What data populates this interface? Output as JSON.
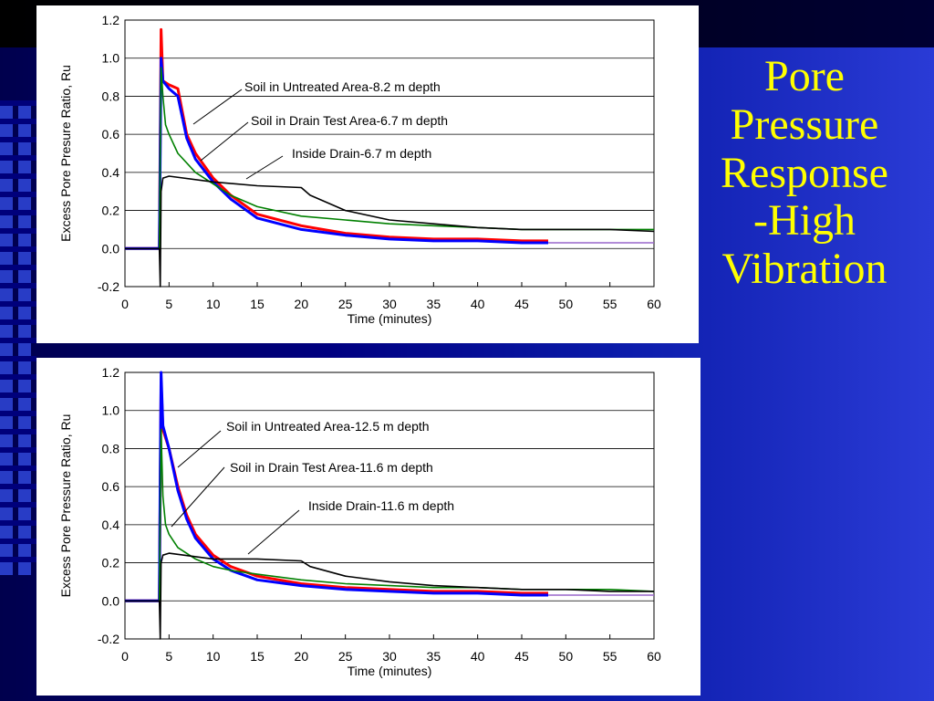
{
  "slide": {
    "title_lines": [
      "Pore",
      "Pressure",
      "Response",
      "-High",
      "Vibration"
    ]
  },
  "colors": {
    "untreated": "#ff0000",
    "drain_test": "#0000ff",
    "green": "#008000",
    "inside_drain": "#000000",
    "purple": "#9966cc",
    "title": "#ffff00"
  },
  "chart_data": [
    {
      "type": "line",
      "ylabel": "Excess Pore Presure Ratio, Ru",
      "xlabel": "Time (minutes)",
      "xlim": [
        0,
        60
      ],
      "ylim": [
        -0.2,
        1.2
      ],
      "xticks": [
        "0",
        "5",
        "10",
        "15",
        "20",
        "25",
        "30",
        "35",
        "40",
        "45",
        "50",
        "55",
        "60"
      ],
      "yticks": [
        "1.2",
        "1.0",
        "0.8",
        "0.6",
        "0.4",
        "0.2",
        "0.0",
        "-0.2"
      ],
      "grid": true,
      "annotations": [
        "Soil in Untreated Area-8.2 m depth",
        "Soil in Drain Test Area-6.7 m depth",
        "Inside Drain-6.7 m depth"
      ],
      "series": [
        {
          "color": "#ff0000",
          "x": [
            0,
            3.9,
            4.0,
            4.1,
            4.3,
            5,
            6,
            7,
            8,
            10,
            12,
            15,
            20,
            25,
            30,
            35,
            40,
            45,
            48
          ],
          "y": [
            0.0,
            0.0,
            0.6,
            1.15,
            0.88,
            0.86,
            0.84,
            0.6,
            0.5,
            0.37,
            0.28,
            0.18,
            0.12,
            0.08,
            0.06,
            0.05,
            0.05,
            0.04,
            0.04
          ]
        },
        {
          "color": "#0000ff",
          "x": [
            0,
            3.9,
            4.0,
            4.1,
            4.3,
            5,
            6,
            7,
            8,
            10,
            12,
            15,
            20,
            25,
            30,
            35,
            40,
            45,
            48
          ],
          "y": [
            0.0,
            0.0,
            0.5,
            1.0,
            0.88,
            0.84,
            0.8,
            0.58,
            0.47,
            0.35,
            0.26,
            0.16,
            0.1,
            0.07,
            0.05,
            0.04,
            0.04,
            0.03,
            0.03
          ]
        },
        {
          "color": "#008000",
          "x": [
            0,
            3.9,
            4.1,
            4.3,
            4.6,
            5,
            6,
            8,
            10,
            12,
            15,
            20,
            25,
            30,
            35,
            40,
            45,
            50,
            55,
            60
          ],
          "y": [
            0.0,
            0.0,
            0.95,
            0.8,
            0.65,
            0.6,
            0.5,
            0.4,
            0.34,
            0.28,
            0.22,
            0.17,
            0.15,
            0.13,
            0.12,
            0.11,
            0.1,
            0.1,
            0.1,
            0.1
          ]
        },
        {
          "color": "#000000",
          "x": [
            0,
            3.9,
            4.0,
            4.1,
            4.3,
            5,
            10,
            15,
            20,
            21,
            25,
            30,
            35,
            40,
            45,
            50,
            55,
            60
          ],
          "y": [
            0.0,
            0.0,
            -0.2,
            0.3,
            0.37,
            0.38,
            0.35,
            0.33,
            0.32,
            0.28,
            0.2,
            0.15,
            0.13,
            0.11,
            0.1,
            0.1,
            0.1,
            0.09
          ]
        },
        {
          "color": "#9966cc",
          "x": [
            48,
            50,
            55,
            60
          ],
          "y": [
            0.03,
            0.03,
            0.03,
            0.03
          ]
        }
      ]
    },
    {
      "type": "line",
      "ylabel": "Excess Pore Pressure Ratio, Ru",
      "xlabel": "Time (minutes)",
      "xlim": [
        0,
        60
      ],
      "ylim": [
        -0.2,
        1.2
      ],
      "xticks": [
        "0",
        "5",
        "10",
        "15",
        "20",
        "25",
        "30",
        "35",
        "40",
        "45",
        "50",
        "55",
        "60"
      ],
      "yticks": [
        "1.2",
        "1.0",
        "0.8",
        "0.6",
        "0.4",
        "0.2",
        "0.0",
        "-0.2"
      ],
      "grid": true,
      "annotations": [
        "Soil in Untreated Area-12.5 m depth",
        "Soil in Drain Test Area-11.6 m depth",
        "Inside Drain-11.6 m depth"
      ],
      "series": [
        {
          "color": "#ff0000",
          "x": [
            0,
            3.9,
            4.0,
            4.1,
            4.3,
            5,
            6,
            7,
            8,
            10,
            12,
            15,
            20,
            25,
            30,
            35,
            40,
            45,
            48
          ],
          "y": [
            0.0,
            0.0,
            0.6,
            1.15,
            0.9,
            0.8,
            0.6,
            0.45,
            0.35,
            0.24,
            0.18,
            0.13,
            0.09,
            0.07,
            0.06,
            0.05,
            0.05,
            0.04,
            0.04
          ]
        },
        {
          "color": "#0000ff",
          "x": [
            0,
            3.9,
            4.0,
            4.1,
            4.3,
            5,
            6,
            7,
            8,
            10,
            12,
            15,
            20,
            25,
            30,
            35,
            40,
            45,
            48
          ],
          "y": [
            0.0,
            0.0,
            0.7,
            1.2,
            0.92,
            0.8,
            0.58,
            0.43,
            0.33,
            0.22,
            0.16,
            0.11,
            0.08,
            0.06,
            0.05,
            0.04,
            0.04,
            0.03,
            0.03
          ]
        },
        {
          "color": "#008000",
          "x": [
            0,
            3.9,
            4.1,
            4.3,
            4.6,
            5,
            6,
            8,
            10,
            12,
            15,
            20,
            25,
            30,
            35,
            40,
            45,
            50,
            55,
            60
          ],
          "y": [
            0.0,
            0.0,
            0.9,
            0.55,
            0.4,
            0.35,
            0.28,
            0.22,
            0.18,
            0.16,
            0.14,
            0.11,
            0.09,
            0.08,
            0.07,
            0.07,
            0.06,
            0.06,
            0.06,
            0.05
          ]
        },
        {
          "color": "#000000",
          "x": [
            0,
            3.9,
            4.0,
            4.1,
            4.3,
            5,
            10,
            15,
            20,
            21,
            25,
            30,
            35,
            40,
            45,
            50,
            55,
            60
          ],
          "y": [
            0.0,
            0.0,
            -0.2,
            0.2,
            0.24,
            0.25,
            0.22,
            0.22,
            0.21,
            0.18,
            0.13,
            0.1,
            0.08,
            0.07,
            0.06,
            0.06,
            0.05,
            0.05
          ]
        },
        {
          "color": "#9966cc",
          "x": [
            48,
            50,
            55,
            60
          ],
          "y": [
            0.03,
            0.03,
            0.03,
            0.03
          ]
        }
      ]
    }
  ]
}
